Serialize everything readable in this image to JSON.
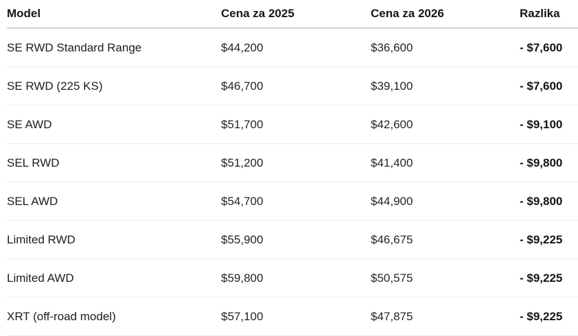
{
  "chart_data": {
    "type": "table",
    "columns": [
      "Model",
      "Cena za 2025",
      "Cena za 2026",
      "Razlika"
    ],
    "rows": [
      [
        "SE RWD Standard Range",
        "$44,200",
        "$36,600",
        "- $7,600"
      ],
      [
        "SE RWD (225 KS)",
        "$46,700",
        "$39,100",
        "- $7,600"
      ],
      [
        "SE AWD",
        "$51,700",
        "$42,600",
        "- $9,100"
      ],
      [
        "SEL RWD",
        "$51,200",
        "$41,400",
        "- $9,800"
      ],
      [
        "SEL AWD",
        "$54,700",
        "$44,900",
        "- $9,800"
      ],
      [
        "Limited RWD",
        "$55,900",
        "$46,675",
        "- $9,225"
      ],
      [
        "Limited AWD",
        "$59,800",
        "$50,575",
        "- $9,225"
      ],
      [
        "XRT (off-road model)",
        "$57,100",
        "$47,875",
        "- $9,225"
      ]
    ],
    "layout": {
      "header_bold": true,
      "difference_column_bold": true
    }
  },
  "colors": {
    "background": "#ffffff",
    "text": "#1f1f1f",
    "header_border": "#d2d2d2",
    "row_border": "#ededed"
  }
}
